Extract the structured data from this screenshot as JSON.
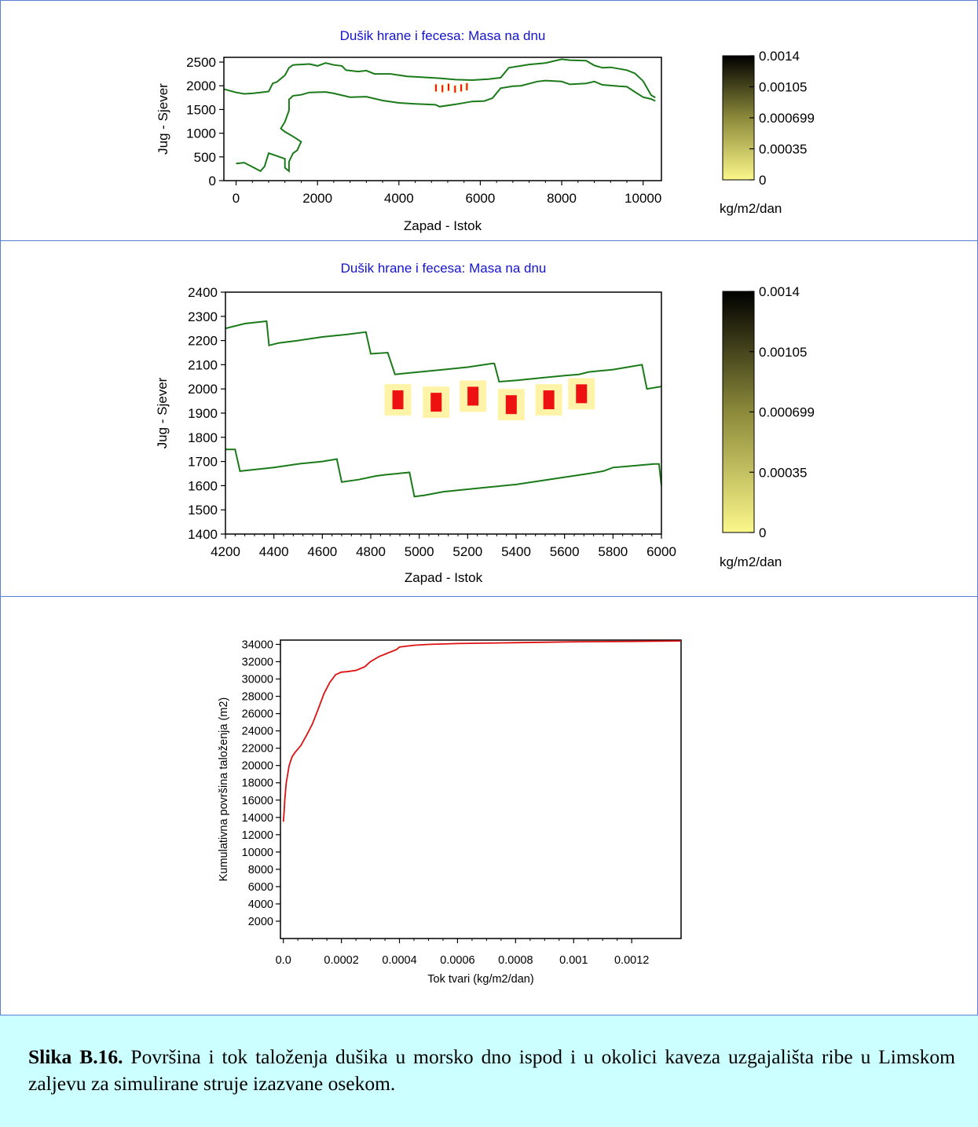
{
  "colors": {
    "coastline": "#1a7a1a",
    "deposit": "#ee1111",
    "halo": "#fff3a8",
    "title": "#1414cc",
    "curve": "#dd1111",
    "colorbar_low": "#fbf78a",
    "colorbar_high": "#000000"
  },
  "chart_data": [
    {
      "type": "heatmap",
      "title": "Dušik hrane i fecesa: Masa na dnu",
      "xlabel": "Zapad - Istok",
      "ylabel": "Jug - Sjever",
      "xlim": [
        -300,
        10450
      ],
      "ylim": [
        0,
        2600
      ],
      "xticks": [
        0,
        2000,
        4000,
        6000,
        8000,
        10000
      ],
      "yticks": [
        0,
        500,
        1000,
        1500,
        2000,
        2500
      ],
      "colorbar": {
        "ticks": [
          "0.0014",
          "0.00105",
          "0.000699",
          "0.00035",
          "0"
        ],
        "unit": "kg/m2/dan"
      },
      "coast_north": [
        [
          -300,
          1930
        ],
        [
          0,
          1860
        ],
        [
          200,
          1830
        ],
        [
          400,
          1840
        ],
        [
          600,
          1860
        ],
        [
          800,
          1880
        ],
        [
          900,
          2050
        ],
        [
          1000,
          2080
        ],
        [
          1100,
          2150
        ],
        [
          1200,
          2220
        ],
        [
          1300,
          2380
        ],
        [
          1400,
          2440
        ],
        [
          1600,
          2450
        ],
        [
          1800,
          2460
        ],
        [
          2000,
          2420
        ],
        [
          2200,
          2480
        ],
        [
          2400,
          2440
        ],
        [
          2600,
          2420
        ],
        [
          2700,
          2330
        ],
        [
          3000,
          2300
        ],
        [
          3200,
          2320
        ],
        [
          3400,
          2250
        ],
        [
          3800,
          2250
        ],
        [
          4200,
          2200
        ],
        [
          4600,
          2180
        ],
        [
          5000,
          2160
        ],
        [
          5400,
          2130
        ],
        [
          5800,
          2120
        ],
        [
          6200,
          2140
        ],
        [
          6500,
          2170
        ],
        [
          6700,
          2380
        ],
        [
          7200,
          2450
        ],
        [
          7600,
          2480
        ],
        [
          8000,
          2560
        ],
        [
          8200,
          2540
        ],
        [
          8600,
          2530
        ],
        [
          8800,
          2430
        ],
        [
          9000,
          2380
        ],
        [
          9200,
          2390
        ],
        [
          9600,
          2330
        ],
        [
          9800,
          2260
        ],
        [
          10000,
          2100
        ],
        [
          10200,
          1800
        ],
        [
          10300,
          1750
        ]
      ],
      "coast_south": [
        [
          10300,
          1680
        ],
        [
          10200,
          1720
        ],
        [
          10000,
          1760
        ],
        [
          9800,
          1870
        ],
        [
          9600,
          1980
        ],
        [
          9400,
          1990
        ],
        [
          9000,
          2020
        ],
        [
          8800,
          2090
        ],
        [
          8600,
          2050
        ],
        [
          8200,
          2030
        ],
        [
          8000,
          2090
        ],
        [
          7600,
          2110
        ],
        [
          7400,
          2090
        ],
        [
          7000,
          2000
        ],
        [
          6800,
          1990
        ],
        [
          6500,
          1950
        ],
        [
          6300,
          1740
        ],
        [
          6100,
          1680
        ],
        [
          5800,
          1670
        ],
        [
          5400,
          1610
        ],
        [
          5000,
          1560
        ],
        [
          4900,
          1600
        ],
        [
          4400,
          1620
        ],
        [
          4000,
          1640
        ],
        [
          3600,
          1690
        ],
        [
          3200,
          1770
        ],
        [
          2800,
          1760
        ],
        [
          2400,
          1840
        ],
        [
          2200,
          1870
        ],
        [
          1800,
          1860
        ],
        [
          1600,
          1810
        ],
        [
          1400,
          1790
        ],
        [
          1300,
          1710
        ],
        [
          1300,
          1480
        ],
        [
          1200,
          1240
        ],
        [
          1100,
          1100
        ],
        [
          1200,
          1030
        ],
        [
          1400,
          930
        ],
        [
          1600,
          820
        ],
        [
          1500,
          640
        ],
        [
          1400,
          580
        ],
        [
          1300,
          400
        ],
        [
          1300,
          200
        ],
        [
          1200,
          270
        ],
        [
          1200,
          460
        ],
        [
          1000,
          520
        ],
        [
          800,
          580
        ],
        [
          700,
          300
        ],
        [
          600,
          200
        ],
        [
          400,
          290
        ],
        [
          200,
          380
        ],
        [
          0,
          360
        ]
      ],
      "deposits": [
        [
          4910,
          1955
        ],
        [
          5070,
          1940
        ],
        [
          5220,
          1970
        ],
        [
          5380,
          1930
        ],
        [
          5530,
          1955
        ],
        [
          5670,
          1980
        ]
      ]
    },
    {
      "type": "heatmap",
      "title": "Dušik hrane i fecesa: Masa na dnu",
      "xlabel": "Zapad - Istok",
      "ylabel": "Jug - Sjever",
      "xlim": [
        4200,
        6000
      ],
      "ylim": [
        1400,
        2400
      ],
      "xticks": [
        4200,
        4400,
        4600,
        4800,
        5000,
        5200,
        5400,
        5600,
        5800,
        6000
      ],
      "yticks": [
        1400,
        1500,
        1600,
        1700,
        1800,
        1900,
        2000,
        2100,
        2200,
        2300,
        2400
      ],
      "colorbar": {
        "ticks": [
          "0.0014",
          "0.00105",
          "0.000699",
          "0.00035",
          "0"
        ],
        "unit": "kg/m2/dan"
      },
      "coast_north": [
        [
          4200,
          2250
        ],
        [
          4280,
          2270
        ],
        [
          4370,
          2280
        ],
        [
          4380,
          2180
        ],
        [
          4420,
          2190
        ],
        [
          4500,
          2200
        ],
        [
          4600,
          2215
        ],
        [
          4700,
          2225
        ],
        [
          4780,
          2235
        ],
        [
          4800,
          2145
        ],
        [
          4870,
          2150
        ],
        [
          4900,
          2060
        ],
        [
          5000,
          2070
        ],
        [
          5100,
          2080
        ],
        [
          5200,
          2090
        ],
        [
          5300,
          2105
        ],
        [
          5310,
          2105
        ],
        [
          5330,
          2030
        ],
        [
          5400,
          2035
        ],
        [
          5500,
          2045
        ],
        [
          5600,
          2055
        ],
        [
          5660,
          2060
        ],
        [
          5700,
          2070
        ],
        [
          5800,
          2080
        ],
        [
          5860,
          2090
        ],
        [
          5920,
          2100
        ],
        [
          5940,
          2000
        ],
        [
          6000,
          2010
        ]
      ],
      "coast_south": [
        [
          4200,
          1750
        ],
        [
          4240,
          1750
        ],
        [
          4260,
          1660
        ],
        [
          4400,
          1675
        ],
        [
          4500,
          1690
        ],
        [
          4600,
          1700
        ],
        [
          4660,
          1710
        ],
        [
          4680,
          1615
        ],
        [
          4750,
          1625
        ],
        [
          4820,
          1640
        ],
        [
          4860,
          1645
        ],
        [
          4960,
          1655
        ],
        [
          4980,
          1555
        ],
        [
          5020,
          1560
        ],
        [
          5100,
          1575
        ],
        [
          5200,
          1585
        ],
        [
          5300,
          1595
        ],
        [
          5400,
          1605
        ],
        [
          5500,
          1620
        ],
        [
          5600,
          1635
        ],
        [
          5700,
          1650
        ],
        [
          5760,
          1660
        ],
        [
          5800,
          1675
        ],
        [
          5860,
          1680
        ],
        [
          5970,
          1690
        ],
        [
          5990,
          1690
        ],
        [
          6000,
          1600
        ]
      ],
      "deposits": [
        [
          4912,
          1955
        ],
        [
          5070,
          1945
        ],
        [
          5222,
          1970
        ],
        [
          5380,
          1935
        ],
        [
          5535,
          1955
        ],
        [
          5670,
          1980
        ]
      ]
    },
    {
      "type": "line",
      "xlabel": "Tok tvari (kg/m2/dan)",
      "ylabel": "Kumulativna površina taloženja (m2)",
      "xlim": [
        -1e-05,
        0.00137
      ],
      "ylim": [
        0,
        34500
      ],
      "xticks": [
        "0.0",
        "0.0002",
        "0.0004",
        "0.0006",
        "0.0008",
        "0.001",
        "0.0012"
      ],
      "xtick_values": [
        0,
        0.0002,
        0.0004,
        0.0006,
        0.0008,
        0.001,
        0.0012
      ],
      "yticks": [
        2000,
        4000,
        6000,
        8000,
        10000,
        12000,
        14000,
        16000,
        18000,
        20000,
        22000,
        24000,
        26000,
        28000,
        30000,
        32000,
        34000
      ],
      "x": [
        0.0,
        2.5e-06,
        5e-06,
        1e-05,
        2e-05,
        3e-05,
        4e-05,
        6e-05,
        8e-05,
        0.0001,
        0.00012,
        0.00014,
        0.00016,
        0.00018,
        0.0002,
        0.00022,
        0.00025,
        0.00028,
        0.0003,
        0.00033,
        0.00036,
        0.00039,
        0.0004,
        0.00045,
        0.0005,
        0.0006,
        0.0008,
        0.001,
        0.0012,
        0.00137
      ],
      "y": [
        13500,
        14500,
        16000,
        18000,
        20000,
        21000,
        21500,
        22300,
        23500,
        24800,
        26500,
        28300,
        29600,
        30500,
        30800,
        30850,
        31000,
        31400,
        32000,
        32600,
        33000,
        33400,
        33700,
        33900,
        34000,
        34100,
        34200,
        34300,
        34350,
        34400
      ]
    }
  ],
  "caption": {
    "label": "Slika B.16.",
    "text": " Površina i tok taloženja dušika u morsko dno ispod i u okolici kaveza uzgajališta ribe u Limskom zaljevu za simulirane struje izazvane osekom."
  }
}
